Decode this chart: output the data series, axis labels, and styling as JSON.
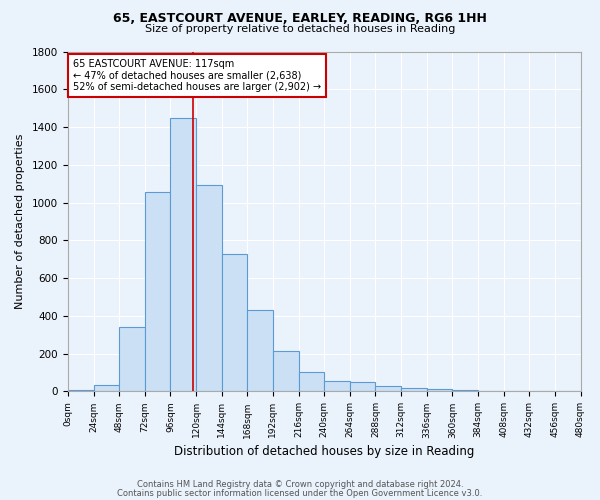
{
  "title_line1": "65, EASTCOURT AVENUE, EARLEY, READING, RG6 1HH",
  "title_line2": "Size of property relative to detached houses in Reading",
  "xlabel": "Distribution of detached houses by size in Reading",
  "ylabel": "Number of detached properties",
  "footer_line1": "Contains HM Land Registry data © Crown copyright and database right 2024.",
  "footer_line2": "Contains public sector information licensed under the Open Government Licence v3.0.",
  "bin_edges": [
    0,
    24,
    48,
    72,
    96,
    120,
    144,
    168,
    192,
    216,
    240,
    264,
    288,
    312,
    336,
    360,
    384,
    408,
    432,
    456,
    480
  ],
  "bin_counts": [
    10,
    35,
    340,
    1055,
    1450,
    1095,
    730,
    430,
    215,
    105,
    57,
    48,
    28,
    17,
    12,
    6,
    4,
    3,
    1,
    1
  ],
  "bar_facecolor": "#cce0f5",
  "bar_edgecolor": "#5b9bd5",
  "property_size": 117,
  "vline_color": "#cc0000",
  "annotation_text": "65 EASTCOURT AVENUE: 117sqm\n← 47% of detached houses are smaller (2,638)\n52% of semi-detached houses are larger (2,902) →",
  "annotation_box_edgecolor": "#cc0000",
  "annotation_box_facecolor": "#ffffff",
  "background_color": "#eaf2fb",
  "grid_color": "#ffffff",
  "tick_labels": [
    "0sqm",
    "24sqm",
    "48sqm",
    "72sqm",
    "96sqm",
    "120sqm",
    "144sqm",
    "168sqm",
    "192sqm",
    "216sqm",
    "240sqm",
    "264sqm",
    "288sqm",
    "312sqm",
    "336sqm",
    "360sqm",
    "384sqm",
    "408sqm",
    "432sqm",
    "456sqm",
    "480sqm"
  ],
  "ylim": [
    0,
    1800
  ],
  "yticks": [
    0,
    200,
    400,
    600,
    800,
    1000,
    1200,
    1400,
    1600,
    1800
  ]
}
